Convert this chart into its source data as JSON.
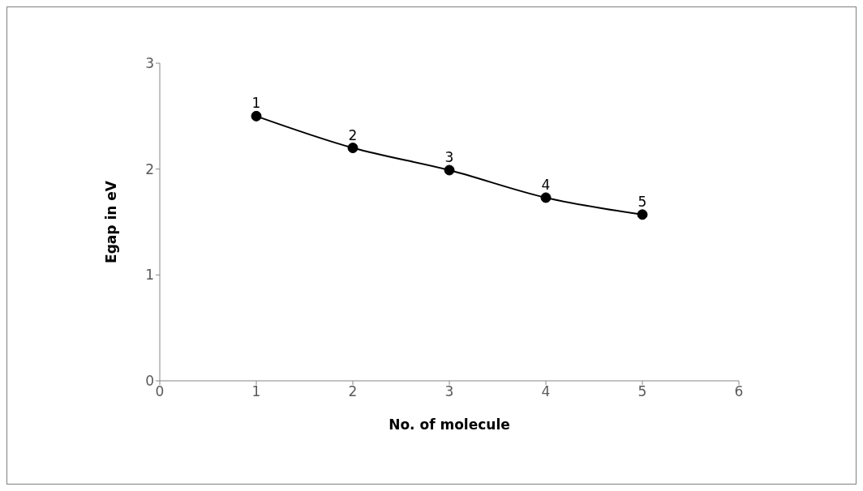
{
  "chart_data": {
    "type": "line",
    "xlabel": "No. of molecule",
    "ylabel": "Egap in eV",
    "x": [
      1,
      2,
      3,
      4,
      5
    ],
    "series": [
      {
        "color": "#000000",
        "values": [
          2.5,
          2.2,
          1.99,
          1.73,
          1.57
        ]
      }
    ],
    "xlim": [
      0,
      6
    ],
    "xticks": [
      0,
      1,
      2,
      3,
      4,
      5,
      6
    ],
    "ylim": [
      0,
      3
    ],
    "yticks": [
      0,
      1,
      2,
      3
    ],
    "grid": false,
    "legend": false,
    "marker": "circle",
    "line_style": "solid",
    "annotations": [
      {
        "text": "1",
        "x": 1,
        "y": 2.5
      },
      {
        "text": "2",
        "x": 2,
        "y": 2.2
      },
      {
        "text": "3",
        "x": 3,
        "y": 1.99
      },
      {
        "text": "4",
        "x": 4,
        "y": 1.73
      },
      {
        "text": "5",
        "x": 5,
        "y": 1.57
      }
    ]
  }
}
